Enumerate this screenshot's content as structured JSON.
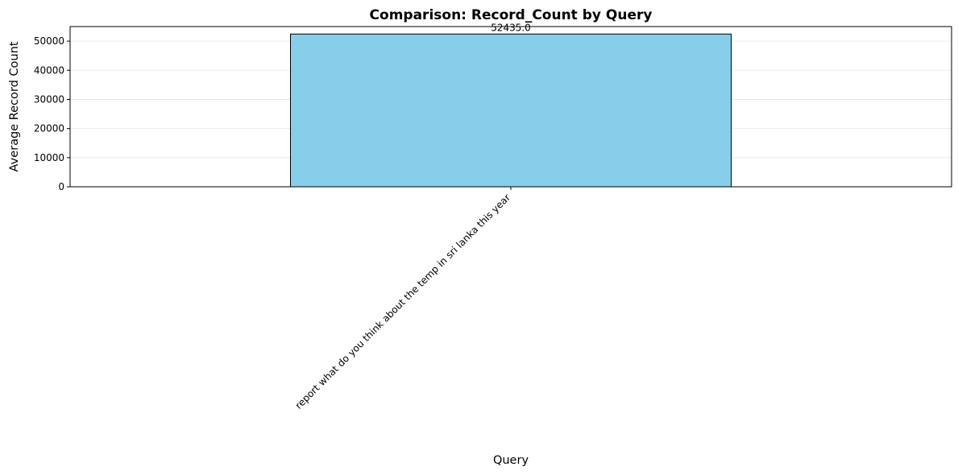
{
  "chart_data": {
    "type": "bar",
    "title": "Comparison: Record_Count by Query",
    "xlabel": "Query",
    "ylabel": "Average Record Count",
    "categories": [
      "report what do you think about the temp in sri lanka this year"
    ],
    "values": [
      52435.0
    ],
    "value_labels": [
      "52435.0"
    ],
    "ylim": [
      0,
      55000
    ],
    "yticks": [
      0,
      10000,
      20000,
      30000,
      40000,
      50000
    ],
    "ytick_labels": [
      "0",
      "10000",
      "20000",
      "30000",
      "40000",
      "50000"
    ],
    "grid": "y",
    "bar_color": "#87ceeb",
    "bar_edge_color": "#000000"
  }
}
